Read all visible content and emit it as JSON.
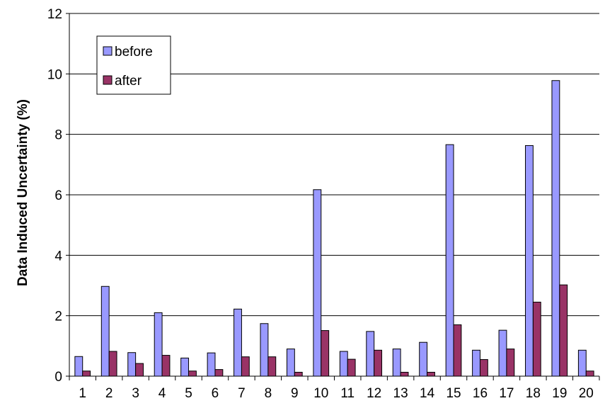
{
  "chart_data": {
    "type": "bar",
    "title": "",
    "xlabel": "",
    "ylabel": "Data Induced Uncertainty (%)",
    "ylim": [
      0,
      12
    ],
    "yticks": [
      0,
      2,
      4,
      6,
      8,
      10,
      12
    ],
    "grid": true,
    "legend_position": "top-left",
    "categories": [
      "1",
      "2",
      "3",
      "4",
      "5",
      "6",
      "7",
      "8",
      "9",
      "10",
      "11",
      "12",
      "13",
      "14",
      "15",
      "16",
      "17",
      "18",
      "19",
      "20"
    ],
    "series": [
      {
        "name": "before",
        "color": "#9999ff",
        "values": [
          0.65,
          2.97,
          0.78,
          2.1,
          0.6,
          0.77,
          2.22,
          1.74,
          0.9,
          6.17,
          0.82,
          1.48,
          0.9,
          1.12,
          7.66,
          0.86,
          1.52,
          7.63,
          9.78,
          0.86
        ]
      },
      {
        "name": "after",
        "color": "#993366",
        "values": [
          0.17,
          0.82,
          0.42,
          0.69,
          0.17,
          0.22,
          0.64,
          0.64,
          0.13,
          1.51,
          0.56,
          0.86,
          0.13,
          0.13,
          1.7,
          0.55,
          0.9,
          2.45,
          3.02,
          0.17
        ]
      }
    ]
  }
}
